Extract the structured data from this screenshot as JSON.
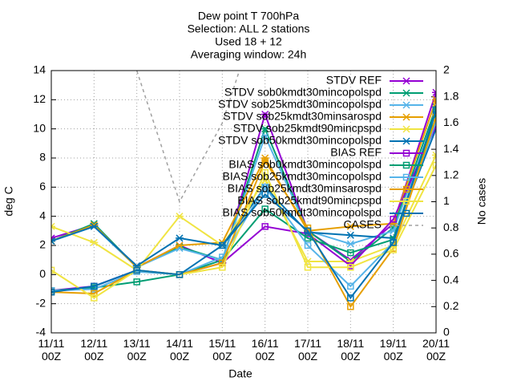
{
  "chart_data": {
    "type": "line",
    "title": [
      "Dew point T 700hPa",
      "Selection: ALL      2 stations",
      "Used 18 + 12",
      "Averaging window: 24h"
    ],
    "xlabel": "Date",
    "ylabel": "deg C",
    "y2label": "No cases",
    "categories": [
      "11/11 00Z",
      "12/11 00Z",
      "13/11 00Z",
      "14/11 00Z",
      "15/11 00Z",
      "16/11 00Z",
      "17/11 00Z",
      "18/11 00Z",
      "19/11 00Z",
      "20/11 00Z"
    ],
    "ylim": [
      -4,
      14
    ],
    "yticks": [
      -4,
      -2,
      0,
      2,
      4,
      6,
      8,
      10,
      12,
      14
    ],
    "y2lim": [
      0,
      2
    ],
    "y2ticks": [
      0,
      0.2,
      0.4,
      0.6,
      0.8,
      1,
      1.2,
      1.4,
      1.6,
      1.8,
      2
    ],
    "grid": true,
    "series": [
      {
        "name": "STDV REF",
        "color": "#9400d3",
        "marker": "star",
        "values": [
          2.5,
          3.4,
          0.5,
          2.0,
          0.8,
          11.0,
          3.0,
          1.0,
          3.5,
          12.5
        ]
      },
      {
        "name": "STDV sob0kmdt30mincopolspd",
        "color": "#009e73",
        "marker": "star",
        "values": [
          2.3,
          3.5,
          0.5,
          1.9,
          1.0,
          10.0,
          3.0,
          0.9,
          3.2,
          11.5
        ]
      },
      {
        "name": "STDV sob25kmdt30mincopolspd",
        "color": "#56b4e9",
        "marker": "star",
        "values": [
          2.3,
          3.3,
          0.5,
          1.8,
          1.0,
          9.5,
          3.0,
          2.1,
          3.0,
          11.0
        ]
      },
      {
        "name": "STDV sob25kmdt30minsarospd",
        "color": "#e69f00",
        "marker": "star",
        "values": [
          2.3,
          3.4,
          0.5,
          2.0,
          2.2,
          8.0,
          3.0,
          3.3,
          3.5,
          12.0
        ]
      },
      {
        "name": "STDV sob25kmdt90mincpspd",
        "color": "#f0e442",
        "marker": "star",
        "values": [
          3.3,
          2.2,
          0.3,
          4.0,
          2.0,
          6.5,
          0.9,
          0.9,
          2.0,
          8.2
        ]
      },
      {
        "name": "STDV sob50kmdt30mincopolspd",
        "color": "#0072b2",
        "marker": "star",
        "values": [
          2.3,
          3.3,
          0.6,
          2.5,
          2.0,
          6.0,
          2.9,
          2.7,
          2.5,
          10.0
        ]
      },
      {
        "name": "BIAS REF",
        "color": "#9400d3",
        "marker": "square",
        "values": [
          -1.1,
          -0.8,
          0.3,
          0,
          0.8,
          3.3,
          2.8,
          0.6,
          3.8,
          10.2
        ]
      },
      {
        "name": "BIAS sob0kmdt30mincopolspd",
        "color": "#009e73",
        "marker": "square",
        "values": [
          -1.1,
          -0.9,
          -0.5,
          0,
          1.0,
          4.5,
          2.5,
          1.5,
          2.4,
          11.0
        ]
      },
      {
        "name": "BIAS sob25kmdt30mincopolspd",
        "color": "#56b4e9",
        "marker": "square",
        "values": [
          -1.1,
          -1.0,
          0.2,
          0,
          1.2,
          6.0,
          2.0,
          -0.8,
          2.2,
          10.5
        ]
      },
      {
        "name": "BIAS sob25kmdt30minsarospd",
        "color": "#e69f00",
        "marker": "square",
        "values": [
          -1.2,
          -1.3,
          0.3,
          0,
          0.8,
          7.8,
          3.2,
          -2.2,
          1.8,
          10.8
        ]
      },
      {
        "name": "BIAS sob25kmdt90mincpspd",
        "color": "#f0e442",
        "marker": "square",
        "values": [
          0.3,
          -1.6,
          0.3,
          0,
          0.5,
          7.0,
          0.5,
          0.5,
          1.7,
          7.5
        ]
      },
      {
        "name": "BIAS sob50kmdt30mincopolspd",
        "color": "#0072b2",
        "marker": "square",
        "values": [
          -1.2,
          -0.8,
          0.3,
          0,
          2.0,
          5.5,
          3.0,
          -1.6,
          2.2,
          11.3
        ]
      },
      {
        "name": "CASES",
        "color": "#a0a0a0",
        "marker": "none",
        "dash": true,
        "axis": "y2",
        "values": [
          null,
          2.6,
          2,
          1,
          1.6,
          2.6,
          null,
          null,
          null,
          null
        ]
      }
    ]
  }
}
